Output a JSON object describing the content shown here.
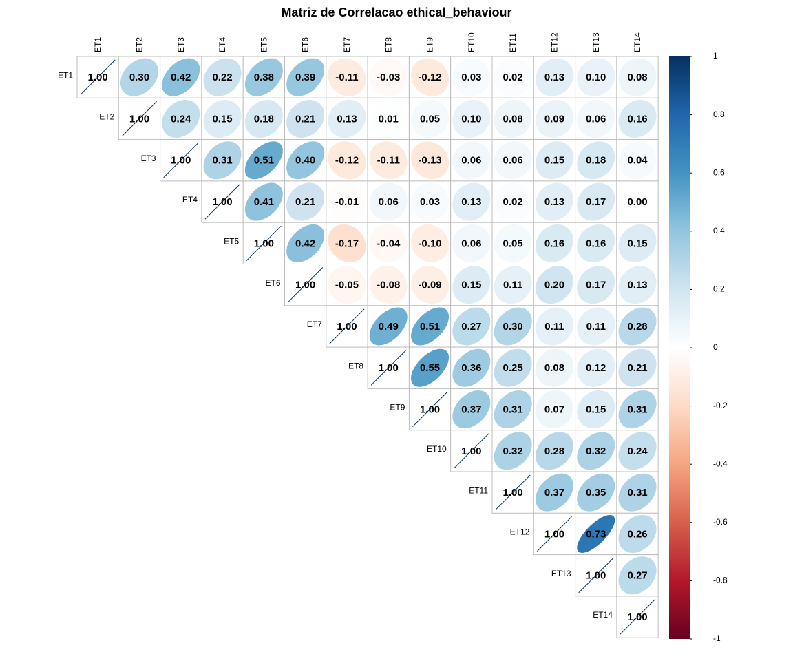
{
  "chart_data": {
    "type": "heatmap",
    "title": "Matriz de Correlacao  ethical_behaviour",
    "variables": [
      "ET1",
      "ET2",
      "ET3",
      "ET4",
      "ET5",
      "ET6",
      "ET7",
      "ET8",
      "ET9",
      "ET10",
      "ET11",
      "ET12",
      "ET13",
      "ET14"
    ],
    "matrix": [
      [
        1.0,
        0.3,
        0.42,
        0.22,
        0.38,
        0.39,
        -0.11,
        -0.03,
        -0.12,
        0.03,
        0.02,
        0.13,
        0.1,
        0.08
      ],
      [
        0.3,
        1.0,
        0.24,
        0.15,
        0.18,
        0.21,
        0.13,
        0.01,
        0.05,
        0.1,
        0.08,
        0.09,
        0.06,
        0.16
      ],
      [
        0.42,
        0.24,
        1.0,
        0.31,
        0.51,
        0.4,
        -0.12,
        -0.11,
        -0.13,
        0.06,
        0.06,
        0.15,
        0.18,
        0.04
      ],
      [
        0.22,
        0.15,
        0.31,
        1.0,
        0.41,
        0.21,
        -0.01,
        0.06,
        0.03,
        0.13,
        0.02,
        0.13,
        0.17,
        0.0
      ],
      [
        0.38,
        0.18,
        0.51,
        0.41,
        1.0,
        0.42,
        -0.17,
        -0.04,
        -0.1,
        0.06,
        0.05,
        0.16,
        0.16,
        0.15
      ],
      [
        0.39,
        0.21,
        0.4,
        0.21,
        0.42,
        1.0,
        -0.05,
        -0.08,
        -0.09,
        0.15,
        0.11,
        0.2,
        0.17,
        0.13
      ],
      [
        -0.11,
        0.13,
        -0.12,
        -0.01,
        -0.17,
        -0.05,
        1.0,
        0.49,
        0.51,
        0.27,
        0.3,
        0.11,
        0.11,
        0.28
      ],
      [
        -0.03,
        0.01,
        -0.11,
        0.06,
        -0.04,
        -0.08,
        0.49,
        1.0,
        0.55,
        0.36,
        0.25,
        0.08,
        0.12,
        0.21
      ],
      [
        -0.12,
        0.05,
        -0.13,
        0.03,
        -0.1,
        -0.09,
        0.51,
        0.55,
        1.0,
        0.37,
        0.31,
        0.07,
        0.15,
        0.31
      ],
      [
        0.03,
        0.1,
        0.06,
        0.13,
        0.06,
        0.15,
        0.27,
        0.36,
        0.37,
        1.0,
        0.32,
        0.28,
        0.32,
        0.24
      ],
      [
        0.02,
        0.08,
        0.06,
        0.02,
        0.05,
        0.11,
        0.3,
        0.25,
        0.31,
        0.32,
        1.0,
        0.37,
        0.35,
        0.31
      ],
      [
        0.13,
        0.09,
        0.15,
        0.13,
        0.16,
        0.2,
        0.11,
        0.08,
        0.07,
        0.28,
        0.37,
        1.0,
        0.73,
        0.26
      ],
      [
        0.1,
        0.06,
        0.18,
        0.17,
        0.16,
        0.17,
        0.11,
        0.12,
        0.15,
        0.32,
        0.35,
        0.73,
        1.0,
        0.27
      ],
      [
        0.08,
        0.16,
        0.04,
        0.0,
        0.15,
        0.13,
        0.28,
        0.21,
        0.31,
        0.24,
        0.31,
        0.26,
        0.27,
        1.0
      ]
    ],
    "display": "upper",
    "method": "ellipse",
    "number_format": "0.00",
    "color_range": [
      -1,
      1
    ],
    "colorbar_ticks": [
      "1",
      "0.8",
      "0.6",
      "0.4",
      "0.2",
      "0",
      "-0.2",
      "-0.4",
      "-0.6",
      "-0.8",
      "-1"
    ],
    "colors": {
      "palette": [
        "#67001F",
        "#B2182B",
        "#D6604D",
        "#F4A582",
        "#FDDBC7",
        "#FFFFFF",
        "#D1E5F0",
        "#92C5DE",
        "#4393C3",
        "#2166AC",
        "#053061"
      ],
      "grid": "#BEBEBE",
      "text": "#000000"
    }
  }
}
